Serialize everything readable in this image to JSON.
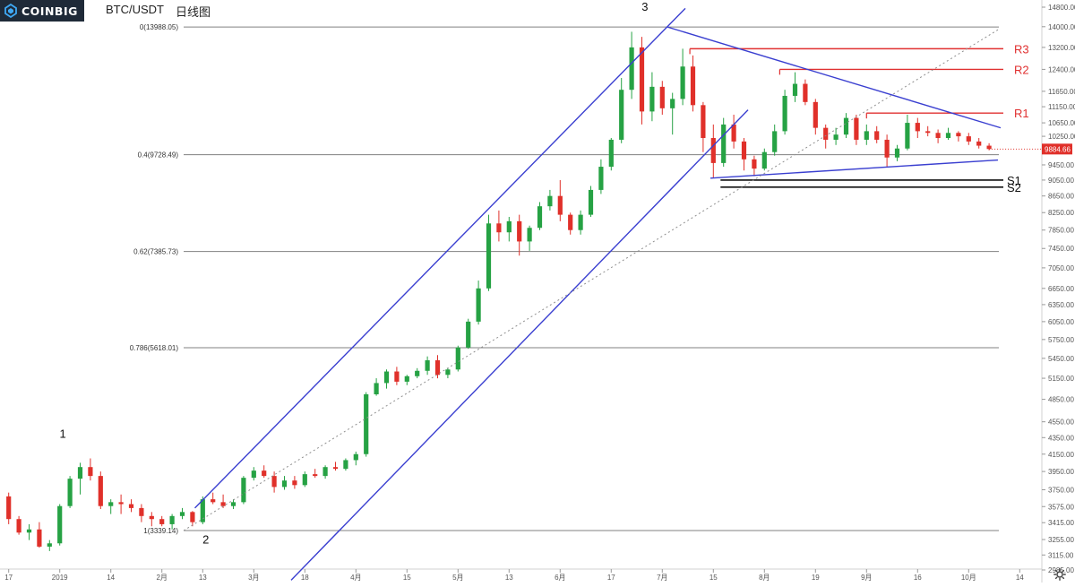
{
  "header": {
    "brand": "COINBIG",
    "symbol": "BTC/USDT",
    "timeframe": "日线图"
  },
  "chart_data": {
    "type": "candlestick",
    "ylim": [
      2900,
      14850
    ],
    "price_axis_ticks": [
      14800,
      14000,
      13200,
      12400,
      11650,
      11150,
      10650,
      10250,
      9450,
      9050,
      8650,
      8250,
      7850,
      7450,
      7050,
      6650,
      6350,
      6050,
      5750,
      5450,
      5150,
      4850,
      4550,
      4350,
      4150,
      3950,
      3750,
      3575,
      3415,
      3255,
      3115,
      2985
    ],
    "time_axis_labels": [
      {
        "t": 0.5,
        "label": "17"
      },
      {
        "t": 5.5,
        "label": "2019"
      },
      {
        "t": 10.5,
        "label": "14"
      },
      {
        "t": 15.5,
        "label": "2月"
      },
      {
        "t": 19.5,
        "label": "13"
      },
      {
        "t": 24.5,
        "label": "3月"
      },
      {
        "t": 29.5,
        "label": "18"
      },
      {
        "t": 34.5,
        "label": "4月"
      },
      {
        "t": 39.5,
        "label": "15"
      },
      {
        "t": 44.5,
        "label": "5月"
      },
      {
        "t": 49.5,
        "label": "13"
      },
      {
        "t": 54.5,
        "label": "6月"
      },
      {
        "t": 59.5,
        "label": "17"
      },
      {
        "t": 64.5,
        "label": "7月"
      },
      {
        "t": 69.5,
        "label": "15"
      },
      {
        "t": 74.5,
        "label": "8月"
      },
      {
        "t": 79.5,
        "label": "19"
      },
      {
        "t": 84.5,
        "label": "9月"
      },
      {
        "t": 89.5,
        "label": "16"
      },
      {
        "t": 94.5,
        "label": "10月"
      },
      {
        "t": 99.5,
        "label": "14"
      }
    ],
    "current_price": {
      "value": 9884.66,
      "label": "9884.66"
    },
    "fib_levels": [
      {
        "ratio_label": "0",
        "price": 13988.05
      },
      {
        "ratio_label": "0.4",
        "price": 9728.49
      },
      {
        "ratio_label": "0.62",
        "price": 7385.73
      },
      {
        "ratio_label": "0.786",
        "price": 5618.01
      },
      {
        "ratio_label": "1",
        "price": 3339.14
      }
    ],
    "resistance_levels": [
      {
        "label": "R3",
        "price": 13150,
        "t_start": 67.2
      },
      {
        "label": "R2",
        "price": 12400,
        "t_start": 76.0
      },
      {
        "label": "R1",
        "price": 10950,
        "t_start": 84.5
      }
    ],
    "support_levels": [
      {
        "label": "S1",
        "price": 9050,
        "t_start": 69.5
      },
      {
        "label": "S2",
        "price": 8870,
        "t_start": 69.5
      }
    ],
    "wave_labels": [
      {
        "label": "1",
        "t": 5.8,
        "price": 4350
      },
      {
        "label": "2",
        "t": 19.8,
        "price": 3220
      },
      {
        "label": "3",
        "t": 62.8,
        "price": 14650
      }
    ],
    "candles": [
      [
        3680,
        3720,
        3400,
        3450
      ],
      [
        3450,
        3480,
        3300,
        3320
      ],
      [
        3320,
        3400,
        3250,
        3350
      ],
      [
        3350,
        3420,
        3180,
        3190
      ],
      [
        3190,
        3250,
        3150,
        3220
      ],
      [
        3220,
        3600,
        3200,
        3580
      ],
      [
        3580,
        3900,
        3560,
        3870
      ],
      [
        3870,
        4050,
        3700,
        4000
      ],
      [
        4000,
        4100,
        3850,
        3900
      ],
      [
        3900,
        3950,
        3550,
        3580
      ],
      [
        3580,
        3650,
        3500,
        3620
      ],
      [
        3620,
        3700,
        3500,
        3600
      ],
      [
        3600,
        3650,
        3520,
        3560
      ],
      [
        3560,
        3600,
        3420,
        3480
      ],
      [
        3480,
        3520,
        3380,
        3450
      ],
      [
        3450,
        3480,
        3380,
        3400
      ],
      [
        3400,
        3500,
        3350,
        3480
      ],
      [
        3480,
        3560,
        3450,
        3520
      ],
      [
        3520,
        3530,
        3380,
        3420
      ],
      [
        3420,
        3680,
        3400,
        3650
      ],
      [
        3650,
        3720,
        3600,
        3620
      ],
      [
        3620,
        3700,
        3560,
        3580
      ],
      [
        3580,
        3650,
        3550,
        3620
      ],
      [
        3620,
        3900,
        3600,
        3880
      ],
      [
        3880,
        4000,
        3850,
        3960
      ],
      [
        3960,
        4020,
        3880,
        3900
      ],
      [
        3900,
        3950,
        3720,
        3780
      ],
      [
        3780,
        3900,
        3750,
        3850
      ],
      [
        3850,
        3900,
        3760,
        3800
      ],
      [
        3800,
        3950,
        3780,
        3920
      ],
      [
        3920,
        3980,
        3880,
        3900
      ],
      [
        3900,
        4020,
        3870,
        4000
      ],
      [
        4000,
        4060,
        3960,
        3980
      ],
      [
        3980,
        4100,
        3960,
        4080
      ],
      [
        4080,
        4180,
        4020,
        4150
      ],
      [
        4150,
        4950,
        4120,
        4920
      ],
      [
        4920,
        5150,
        4900,
        5080
      ],
      [
        5080,
        5280,
        5000,
        5250
      ],
      [
        5250,
        5320,
        5050,
        5100
      ],
      [
        5100,
        5200,
        5050,
        5180
      ],
      [
        5180,
        5300,
        5150,
        5260
      ],
      [
        5260,
        5480,
        5200,
        5420
      ],
      [
        5420,
        5500,
        5150,
        5200
      ],
      [
        5200,
        5300,
        5150,
        5280
      ],
      [
        5280,
        5650,
        5250,
        5620
      ],
      [
        5620,
        6100,
        5600,
        6050
      ],
      [
        6050,
        6800,
        6000,
        6650
      ],
      [
        6650,
        8200,
        6600,
        8000
      ],
      [
        8000,
        8300,
        7600,
        7800
      ],
      [
        7800,
        8150,
        7600,
        8050
      ],
      [
        8050,
        8200,
        7300,
        7600
      ],
      [
        7600,
        7950,
        7400,
        7900
      ],
      [
        7900,
        8500,
        7850,
        8400
      ],
      [
        8400,
        8800,
        8300,
        8650
      ],
      [
        8650,
        9050,
        8050,
        8200
      ],
      [
        8200,
        8250,
        7750,
        7850
      ],
      [
        7850,
        8300,
        7750,
        8200
      ],
      [
        8200,
        8900,
        8150,
        8800
      ],
      [
        8800,
        9600,
        8700,
        9400
      ],
      [
        9400,
        10200,
        9300,
        10150
      ],
      [
        10150,
        12100,
        10050,
        11700
      ],
      [
        11700,
        13800,
        11400,
        13200
      ],
      [
        13200,
        13600,
        10600,
        11000
      ],
      [
        11000,
        12300,
        10700,
        11800
      ],
      [
        11800,
        12000,
        10900,
        11100
      ],
      [
        11100,
        11600,
        10300,
        11400
      ],
      [
        11400,
        13150,
        11200,
        12500
      ],
      [
        12500,
        12900,
        11000,
        11200
      ],
      [
        11200,
        11300,
        9800,
        10200
      ],
      [
        10200,
        10600,
        9100,
        9500
      ],
      [
        9500,
        10800,
        9400,
        10600
      ],
      [
        10600,
        10900,
        9900,
        10100
      ],
      [
        10100,
        10200,
        9300,
        9600
      ],
      [
        9600,
        9700,
        9150,
        9350
      ],
      [
        9350,
        9900,
        9300,
        9800
      ],
      [
        9800,
        10600,
        9700,
        10400
      ],
      [
        10400,
        11700,
        10300,
        11500
      ],
      [
        11500,
        12300,
        11300,
        11900
      ],
      [
        11900,
        12050,
        11200,
        11300
      ],
      [
        11300,
        11400,
        10300,
        10500
      ],
      [
        10500,
        10600,
        9900,
        10150
      ],
      [
        10150,
        10500,
        10000,
        10300
      ],
      [
        10300,
        10950,
        10200,
        10800
      ],
      [
        10800,
        10900,
        10000,
        10150
      ],
      [
        10150,
        10600,
        10000,
        10400
      ],
      [
        10400,
        10550,
        10050,
        10150
      ],
      [
        10150,
        10300,
        9400,
        9650
      ],
      [
        9650,
        10000,
        9550,
        9900
      ],
      [
        9900,
        10900,
        9850,
        10650
      ],
      [
        10650,
        10800,
        10200,
        10400
      ],
      [
        10400,
        10550,
        10250,
        10350
      ],
      [
        10350,
        10450,
        10050,
        10200
      ],
      [
        10200,
        10500,
        10150,
        10350
      ],
      [
        10350,
        10400,
        10100,
        10250
      ],
      [
        10250,
        10350,
        10000,
        10100
      ],
      [
        10100,
        10200,
        9900,
        9980
      ],
      [
        9980,
        10050,
        9850,
        9885
      ]
    ],
    "candles_columns": [
      "open",
      "high",
      "low",
      "close"
    ]
  }
}
